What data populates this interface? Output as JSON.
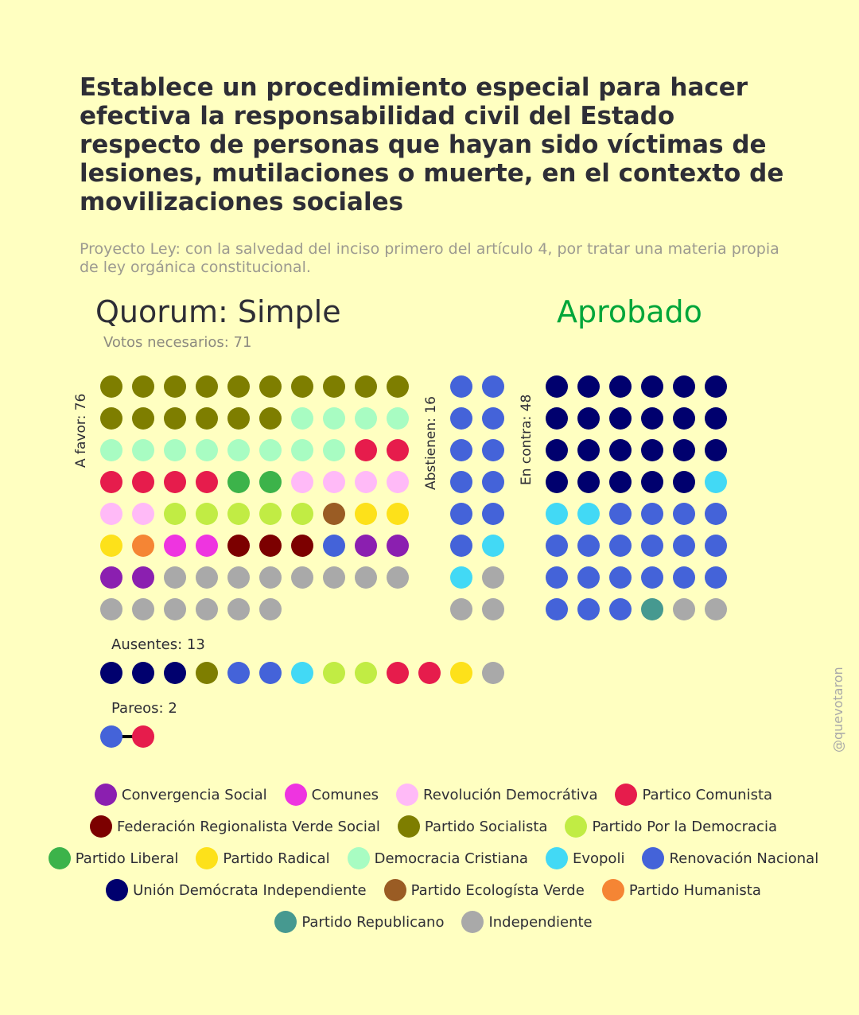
{
  "title": "Establece un procedimiento especial para hacer efectiva la responsabilidad civil del Estado respecto de personas que hayan sido víctimas de lesiones, mutilaciones o muerte, en el contexto de movilizaciones sociales",
  "subtitle": "Proyecto Ley: con la salvedad del inciso primero del artículo 4, por tratar una materia propia de ley orgánica constitucional.",
  "quorum": "Quorum: Simple",
  "result": "Aprobado",
  "result_color": "#00a63a",
  "votes_needed": "Votos necesarios: 71",
  "watermark": "@quevotaron",
  "parties": {
    "CS": {
      "name": "Convergencia Social",
      "color": "#8b1fb0"
    },
    "COM": {
      "name": "Comunes",
      "color": "#ee34e0"
    },
    "RD": {
      "name": "Revolución Democrátiva",
      "color": "#ffbaf7"
    },
    "PC": {
      "name": "Partico Comunista",
      "color": "#e61c4c"
    },
    "FRVS": {
      "name": "Federación Regionalista Verde Social",
      "color": "#7c0000"
    },
    "PS": {
      "name": "Partido Socialista",
      "color": "#7e7e00"
    },
    "PPD": {
      "name": "Partido Por la Democracia",
      "color": "#c1ec44"
    },
    "PL": {
      "name": "Partido Liberal",
      "color": "#3cb34a"
    },
    "PR": {
      "name": "Partido Radical",
      "color": "#fde11a"
    },
    "DC": {
      "name": "Democracia Cristiana",
      "color": "#a8fcc2"
    },
    "EVO": {
      "name": "Evopoli",
      "color": "#42d9f5"
    },
    "RN": {
      "name": "Renovación Nacional",
      "color": "#4463d9"
    },
    "UDI": {
      "name": "Unión Demócrata Independiente",
      "color": "#00006e"
    },
    "PEV": {
      "name": "Partido Ecologísta Verde",
      "color": "#9a5c24"
    },
    "PH": {
      "name": "Partido Humanista",
      "color": "#f58534"
    },
    "REP": {
      "name": "Partido Republicano",
      "color": "#469990"
    },
    "IND": {
      "name": "Independiente",
      "color": "#a9a9a9"
    }
  },
  "legend_order": [
    "CS",
    "COM",
    "RD",
    "PC",
    "FRVS",
    "PS",
    "PPD",
    "PL",
    "PR",
    "DC",
    "EVO",
    "RN",
    "UDI",
    "PEV",
    "PH",
    "REP",
    "IND"
  ],
  "chart_data": {
    "type": "dot-matrix",
    "groups": [
      {
        "key": "favor",
        "label": "A favor: 76",
        "count": 76,
        "seats": [
          "PS",
          "PS",
          "PS",
          "PS",
          "PS",
          "PS",
          "PS",
          "PS",
          "PS",
          "PS",
          "PS",
          "PS",
          "PS",
          "PS",
          "PS",
          "PS",
          "DC",
          "DC",
          "DC",
          "DC",
          "DC",
          "DC",
          "DC",
          "DC",
          "DC",
          "DC",
          "DC",
          "DC",
          "PC",
          "PC",
          "PC",
          "PC",
          "PC",
          "PC",
          "PL",
          "PL",
          "RD",
          "RD",
          "RD",
          "RD",
          "RD",
          "RD",
          "PPD",
          "PPD",
          "PPD",
          "PPD",
          "PPD",
          "PEV",
          "PR",
          "PR",
          "PR",
          "PH",
          "COM",
          "COM",
          "FRVS",
          "FRVS",
          "FRVS",
          "RN",
          "CS",
          "CS",
          "CS",
          "CS",
          "IND",
          "IND",
          "IND",
          "IND",
          "IND",
          "IND",
          "IND",
          "IND",
          "IND",
          "IND",
          "IND",
          "IND",
          "IND",
          "IND"
        ]
      },
      {
        "key": "abstencion",
        "label": "Abstienen: 16",
        "count": 16,
        "seats": [
          "RN",
          "RN",
          "RN",
          "RN",
          "RN",
          "RN",
          "RN",
          "RN",
          "RN",
          "RN",
          "RN",
          "EVO",
          "EVO",
          "IND",
          "IND",
          "IND"
        ]
      },
      {
        "key": "contra",
        "label": "En contra: 48",
        "count": 48,
        "seats": [
          "UDI",
          "UDI",
          "UDI",
          "UDI",
          "UDI",
          "UDI",
          "UDI",
          "UDI",
          "UDI",
          "UDI",
          "UDI",
          "UDI",
          "UDI",
          "UDI",
          "UDI",
          "UDI",
          "UDI",
          "UDI",
          "UDI",
          "UDI",
          "UDI",
          "UDI",
          "UDI",
          "EVO",
          "EVO",
          "EVO",
          "RN",
          "RN",
          "RN",
          "RN",
          "RN",
          "RN",
          "RN",
          "RN",
          "RN",
          "RN",
          "RN",
          "RN",
          "RN",
          "RN",
          "RN",
          "RN",
          "RN",
          "RN",
          "RN",
          "REP",
          "IND",
          "IND"
        ]
      },
      {
        "key": "ausentes",
        "label": "Ausentes: 13",
        "count": 13,
        "seats": [
          "UDI",
          "UDI",
          "UDI",
          "PS",
          "RN",
          "RN",
          "EVO",
          "PPD",
          "PPD",
          "PC",
          "PC",
          "PR",
          "IND"
        ]
      },
      {
        "key": "pareos",
        "label": "Pareos: 2",
        "count": 2,
        "seats": [
          "RN",
          "PC"
        ]
      }
    ]
  }
}
